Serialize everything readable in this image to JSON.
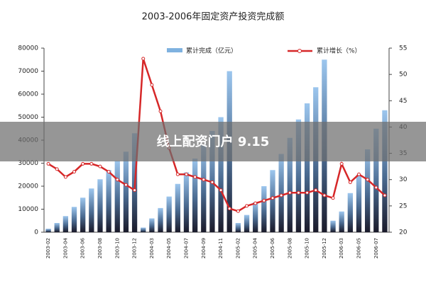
{
  "chart_data": {
    "type": "bar_line",
    "title": "2003-2006年固定资产投资完成额",
    "categories": [
      "2003-02",
      null,
      "2003-04",
      null,
      "2003-06",
      null,
      "2003-08",
      null,
      "2003-10",
      null,
      "2003-12",
      null,
      "2004-03",
      null,
      "2004-05",
      null,
      "2004-07",
      null,
      "2004-09",
      null,
      "2004-11",
      null,
      "2005-02",
      null,
      "2005-04",
      null,
      "2005-06",
      null,
      "2005-08",
      null,
      "2005-10",
      null,
      "2005-12",
      null,
      "2006-03",
      null,
      "2006-05",
      null,
      "2006-07",
      null
    ],
    "series": [
      {
        "name": "累计完成（亿元）",
        "color": "#7fb2e0",
        "values": [
          1500,
          4000,
          7000,
          11000,
          15000,
          19000,
          23000,
          27000,
          31000,
          35000,
          43000,
          2000,
          6000,
          10500,
          15500,
          21000,
          26000,
          32000,
          38000,
          44000,
          50000,
          70000,
          4000,
          7500,
          13000,
          20000,
          27000,
          34000,
          41000,
          49000,
          56000,
          63000,
          75000,
          5000,
          9000,
          17000,
          25000,
          36000,
          45000,
          53000
        ]
      },
      {
        "name": "累计增长（%）",
        "color": "#d62728",
        "axis": "y2",
        "values": [
          33,
          32,
          30.5,
          31.5,
          33,
          33,
          32.5,
          31.5,
          30,
          29,
          28,
          53,
          48,
          43,
          36,
          31,
          31,
          30.5,
          30,
          29.5,
          28,
          24.5,
          24,
          25,
          25.5,
          26,
          26.5,
          27,
          27.5,
          27.5,
          27.5,
          28,
          27,
          26.5,
          33,
          29.5,
          31,
          30,
          28.5,
          27
        ]
      }
    ],
    "ylim": [
      0,
      80000
    ],
    "yticks": [
      0,
      10000,
      20000,
      30000,
      40000,
      50000,
      60000,
      70000,
      80000
    ],
    "y2lim": [
      20,
      55
    ],
    "y2ticks": [
      20,
      25,
      30,
      35,
      40,
      45,
      50,
      55
    ]
  },
  "banner": {
    "text": "线上配资门户 9.15"
  }
}
